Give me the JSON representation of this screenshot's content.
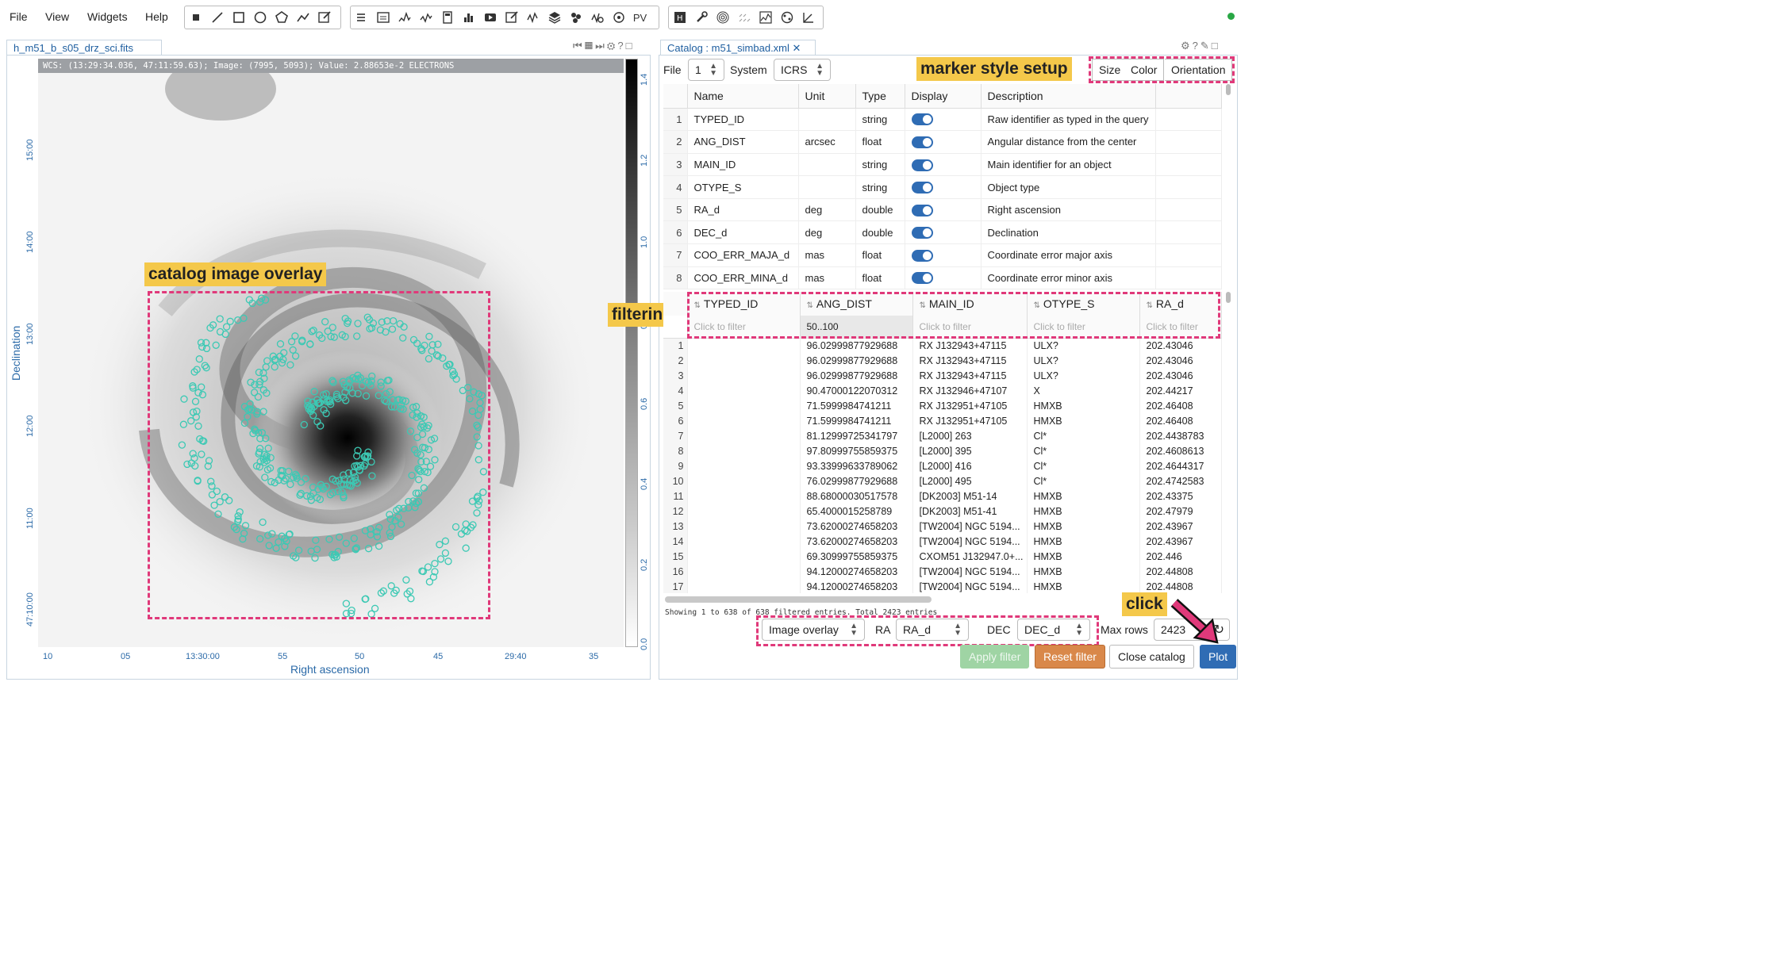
{
  "menubar": {
    "items": [
      "File",
      "View",
      "Widgets",
      "Help"
    ],
    "toolbar_pv_label": "PV",
    "status_color": "#29a745"
  },
  "image_panel": {
    "tab_title": "h_m51_b_s05_drz_sci.fits",
    "wcs_readout": "WCS: (13:29:34.036, 47:11:59.63); Image: (7995, 5093); Value:  2.88653e-2 ELECTRONS",
    "x_axis_title": "Right ascension",
    "y_axis_title": "Declination",
    "x_ticks": [
      "10",
      "05",
      "13:30:00",
      "55",
      "50",
      "45",
      "29:40",
      "35"
    ],
    "y_ticks": [
      "15:00",
      "14:00",
      "13:00",
      "12:00",
      "11:00",
      "47:10:00"
    ],
    "colorbar_ticks": [
      "1.4",
      "1.2",
      "1.0",
      "0.8",
      "0.6",
      "0.4",
      "0.2",
      "0.0"
    ],
    "overlay_callout": "catalog image overlay",
    "marker_color": "#3cc9b4"
  },
  "catalog_panel": {
    "tab_title": "Catalog : m51_simbad.xml",
    "file_label": "File",
    "file_value": "1",
    "system_label": "System",
    "system_value": "ICRS",
    "marker_callout": "marker style setup",
    "marker_buttons": [
      "Size",
      "Color",
      "Orientation"
    ],
    "columns_header": [
      "Name",
      "Unit",
      "Type",
      "Display",
      "Description"
    ],
    "columns": [
      {
        "idx": "1",
        "name": "TYPED_ID",
        "unit": "",
        "type": "string",
        "desc": "Raw identifier as typed in the query"
      },
      {
        "idx": "2",
        "name": "ANG_DIST",
        "unit": "arcsec",
        "type": "float",
        "desc": "Angular distance from the center"
      },
      {
        "idx": "3",
        "name": "MAIN_ID",
        "unit": "",
        "type": "string",
        "desc": "Main identifier for an object"
      },
      {
        "idx": "4",
        "name": "OTYPE_S",
        "unit": "",
        "type": "string",
        "desc": "Object type"
      },
      {
        "idx": "5",
        "name": "RA_d",
        "unit": "deg",
        "type": "double",
        "desc": "Right ascension"
      },
      {
        "idx": "6",
        "name": "DEC_d",
        "unit": "deg",
        "type": "double",
        "desc": "Declination"
      },
      {
        "idx": "7",
        "name": "COO_ERR_MAJA_d",
        "unit": "mas",
        "type": "float",
        "desc": "Coordinate error major axis"
      },
      {
        "idx": "8",
        "name": "COO_ERR_MINA_d",
        "unit": "mas",
        "type": "float",
        "desc": "Coordinate error minor axis"
      }
    ],
    "filter_callout": "filtering",
    "data_headers": [
      "TYPED_ID",
      "ANG_DIST",
      "MAIN_ID",
      "OTYPE_S",
      "RA_d"
    ],
    "filters": [
      "Click to filter",
      "50..100",
      "Click to filter",
      "Click to filter",
      "Click to filter"
    ],
    "rows": [
      [
        "1",
        "",
        "96.02999877929688",
        "RX J132943+47115",
        "ULX?",
        "202.43046"
      ],
      [
        "2",
        "",
        "96.02999877929688",
        "RX J132943+47115",
        "ULX?",
        "202.43046"
      ],
      [
        "3",
        "",
        "96.02999877929688",
        "RX J132943+47115",
        "ULX?",
        "202.43046"
      ],
      [
        "4",
        "",
        "90.47000122070312",
        "RX J132946+47107",
        "X",
        "202.44217"
      ],
      [
        "5",
        "",
        "71.5999984741211",
        "RX J132951+47105",
        "HMXB",
        "202.46408"
      ],
      [
        "6",
        "",
        "71.5999984741211",
        "RX J132951+47105",
        "HMXB",
        "202.46408"
      ],
      [
        "7",
        "",
        "81.12999725341797",
        "[L2000] 263",
        "Cl*",
        "202.4438783"
      ],
      [
        "8",
        "",
        "97.80999755859375",
        "[L2000] 395",
        "Cl*",
        "202.4608613"
      ],
      [
        "9",
        "",
        "93.33999633789062",
        "[L2000] 416",
        "Cl*",
        "202.4644317"
      ],
      [
        "10",
        "",
        "76.02999877929688",
        "[L2000] 495",
        "Cl*",
        "202.4742583"
      ],
      [
        "11",
        "",
        "88.68000030517578",
        "[DK2003] M51-14",
        "HMXB",
        "202.43375"
      ],
      [
        "12",
        "",
        "65.4000015258789",
        "[DK2003] M51-41",
        "HMXB",
        "202.47979"
      ],
      [
        "13",
        "",
        "73.62000274658203",
        "[TW2004] NGC 5194...",
        "HMXB",
        "202.43967"
      ],
      [
        "14",
        "",
        "73.62000274658203",
        "[TW2004] NGC 5194...",
        "HMXB",
        "202.43967"
      ],
      [
        "15",
        "",
        "69.30999755859375",
        "CXOM51 J132947.0+...",
        "HMXB",
        "202.446"
      ],
      [
        "16",
        "",
        "94.12000274658203",
        "[TW2004] NGC 5194...",
        "HMXB",
        "202.44808"
      ],
      [
        "17",
        "",
        "94.12000274658203",
        "[TW2004] NGC 5194...",
        "HMXB",
        "202.44808"
      ]
    ],
    "summary": "Showing 1 to 638 of 638 filtered entries. Total 2423 entries",
    "overlay_select": "Image overlay",
    "ra_label": "RA",
    "ra_value": "RA_d",
    "dec_label": "DEC",
    "dec_value": "DEC_d",
    "maxrows_label": "Max rows",
    "maxrows_value": "2423",
    "click_callout": "click",
    "buttons": {
      "apply": "Apply filter",
      "reset": "Reset filter",
      "close": "Close catalog",
      "plot": "Plot"
    },
    "colors": {
      "accent": "#2f6cb4",
      "highlight": "#e0397a",
      "callout": "#f4c84a",
      "reset": "#d9884a",
      "apply": "#9fd4a4"
    }
  }
}
